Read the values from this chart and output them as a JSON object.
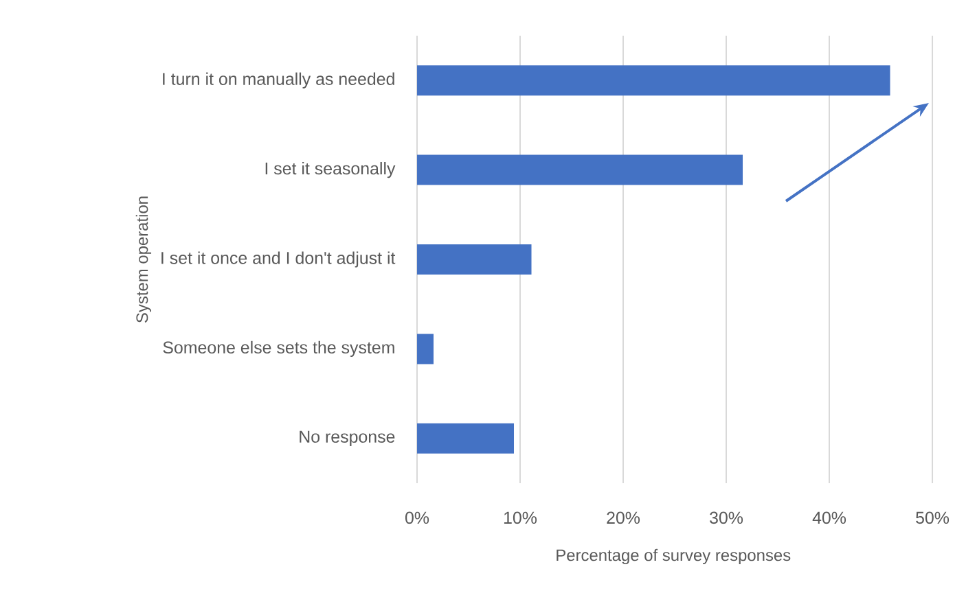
{
  "chart_data": {
    "type": "bar",
    "orientation": "horizontal",
    "xlabel": "Percentage of survey responses",
    "ylabel": "System operation",
    "categories": [
      "I turn it on manually as needed",
      "I set it seasonally",
      "I set it once and I don't adjust it",
      "Someone else sets the system",
      "No response"
    ],
    "values": [
      45.9,
      31.6,
      11.1,
      1.6,
      9.4
    ],
    "color": "#4472c4",
    "xlim": [
      0,
      50
    ],
    "xticks": [
      {
        "value": 0,
        "label": "0%"
      },
      {
        "value": 10,
        "label": "10%"
      },
      {
        "value": 20,
        "label": "20%"
      },
      {
        "value": 30,
        "label": "30%"
      },
      {
        "value": 40,
        "label": "40%"
      },
      {
        "value": 50,
        "label": "50%"
      }
    ],
    "grid": "x"
  }
}
